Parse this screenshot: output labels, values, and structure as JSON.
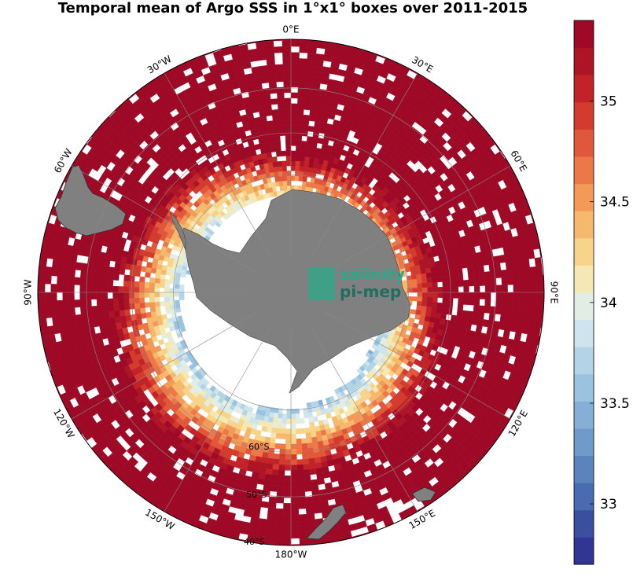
{
  "title": "Temporal mean of Argo SSS in 1°x1° boxes over 2011-2015",
  "map": {
    "projection": "south polar stereographic",
    "longitude_labels": [
      {
        "text": "0°E",
        "lon": 0
      },
      {
        "text": "30°E",
        "lon": 30
      },
      {
        "text": "60°E",
        "lon": 60
      },
      {
        "text": "90°E",
        "lon": 90
      },
      {
        "text": "120°E",
        "lon": 120
      },
      {
        "text": "150°E",
        "lon": 150
      },
      {
        "text": "180°W",
        "lon": 180
      },
      {
        "text": "150°W",
        "lon": 210
      },
      {
        "text": "120°W",
        "lon": 240
      },
      {
        "text": "90°W",
        "lon": 270
      },
      {
        "text": "60°W",
        "lon": 300
      },
      {
        "text": "30°W",
        "lon": 330
      }
    ],
    "latitude_labels": [
      "60°S",
      "50°S",
      "40°S"
    ],
    "logo": {
      "line1": "salinity",
      "line2": "pi-mep"
    }
  },
  "colorbar": {
    "min": 32.7,
    "max": 35.4,
    "ticks": [
      {
        "value": 33,
        "label": "33"
      },
      {
        "value": 33.5,
        "label": "33.5"
      },
      {
        "value": 34,
        "label": "34"
      },
      {
        "value": 34.5,
        "label": "34.5"
      },
      {
        "value": 35,
        "label": "35"
      }
    ],
    "colors": [
      "#313695",
      "#3a4fa0",
      "#4a6bb2",
      "#5b84bd",
      "#6f9bca",
      "#85afd6",
      "#9ac3df",
      "#b3d4e6",
      "#cde4ec",
      "#e2eee5",
      "#f4e8b4",
      "#f7d48a",
      "#f5b86c",
      "#f39a58",
      "#ec7848",
      "#e0573b",
      "#d23b2d",
      "#c22328",
      "#ad1527",
      "#9e0a26"
    ]
  }
}
